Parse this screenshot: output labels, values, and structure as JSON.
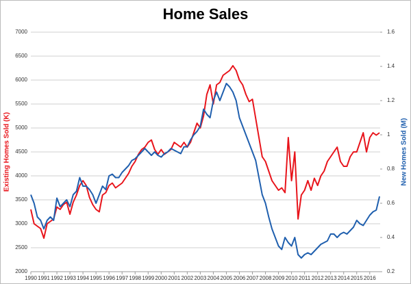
{
  "chart_data": {
    "type": "line",
    "title": "Home Sales",
    "y_label": "Existing Homes Sold (K)",
    "y2_label": "New Homes Sold (M)",
    "x": [
      1990,
      1990.25,
      1990.5,
      1990.75,
      1991,
      1991.25,
      1991.5,
      1991.75,
      1992,
      1992.25,
      1992.5,
      1992.75,
      1993,
      1993.25,
      1993.5,
      1993.75,
      1994,
      1994.25,
      1994.5,
      1994.75,
      1995,
      1995.25,
      1995.5,
      1995.75,
      1996,
      1996.25,
      1996.5,
      1996.75,
      1997,
      1997.25,
      1997.5,
      1997.75,
      1998,
      1998.25,
      1998.5,
      1998.75,
      1999,
      1999.25,
      1999.5,
      1999.75,
      2000,
      2000.25,
      2000.5,
      2000.75,
      2001,
      2001.25,
      2001.5,
      2001.75,
      2002,
      2002.25,
      2002.5,
      2002.75,
      2003,
      2003.25,
      2003.5,
      2003.75,
      2004,
      2004.25,
      2004.5,
      2004.75,
      2005,
      2005.25,
      2005.5,
      2005.75,
      2006,
      2006.25,
      2006.5,
      2006.75,
      2007,
      2007.25,
      2007.5,
      2007.75,
      2008,
      2008.25,
      2008.5,
      2008.75,
      2009,
      2009.25,
      2009.5,
      2009.75,
      2010,
      2010.25,
      2010.5,
      2010.75,
      2011,
      2011.25,
      2011.5,
      2011.75,
      2012,
      2012.25,
      2012.5,
      2012.75,
      2013,
      2013.25,
      2013.5,
      2013.75,
      2014,
      2014.25,
      2014.5,
      2014.75,
      2015,
      2015.25,
      2015.5,
      2015.75,
      2016,
      2016.25,
      2016.5,
      2016.75
    ],
    "series": [
      {
        "name": "Existing Homes Sold (K)",
        "color": "#e8141b",
        "axis": "y",
        "values": [
          3300,
          3000,
          2950,
          2900,
          2700,
          3000,
          3050,
          3100,
          3350,
          3300,
          3400,
          3450,
          3200,
          3450,
          3600,
          3800,
          3900,
          3800,
          3550,
          3400,
          3300,
          3250,
          3600,
          3650,
          3800,
          3850,
          3750,
          3800,
          3850,
          3950,
          4050,
          4200,
          4300,
          4450,
          4550,
          4600,
          4700,
          4750,
          4550,
          4450,
          4550,
          4450,
          4500,
          4550,
          4700,
          4650,
          4600,
          4700,
          4600,
          4700,
          4900,
          5100,
          5000,
          5250,
          5700,
          5900,
          5500,
          5900,
          5950,
          6100,
          6150,
          6200,
          6300,
          6200,
          6000,
          5900,
          5700,
          5550,
          5600,
          5200,
          4800,
          4400,
          4300,
          4100,
          3900,
          3800,
          3700,
          3750,
          3650,
          4800,
          3900,
          4500,
          3100,
          3600,
          3700,
          3900,
          3700,
          3950,
          3800,
          4000,
          4100,
          4300,
          4400,
          4500,
          4600,
          4300,
          4200,
          4200,
          4400,
          4500,
          4500,
          4700,
          4900,
          4500,
          4800,
          4900,
          4850,
          4900
        ]
      },
      {
        "name": "New Homes Sold (M)",
        "color": "#1f5fae",
        "axis": "y2",
        "values": [
          0.65,
          0.6,
          0.52,
          0.5,
          0.45,
          0.5,
          0.52,
          0.5,
          0.63,
          0.58,
          0.6,
          0.62,
          0.58,
          0.65,
          0.67,
          0.75,
          0.7,
          0.7,
          0.68,
          0.65,
          0.6,
          0.65,
          0.7,
          0.68,
          0.76,
          0.77,
          0.75,
          0.75,
          0.78,
          0.8,
          0.82,
          0.85,
          0.86,
          0.88,
          0.9,
          0.92,
          0.9,
          0.88,
          0.9,
          0.88,
          0.87,
          0.89,
          0.9,
          0.92,
          0.91,
          0.9,
          0.89,
          0.93,
          0.93,
          0.97,
          1.0,
          1.02,
          1.05,
          1.15,
          1.12,
          1.1,
          1.2,
          1.25,
          1.2,
          1.25,
          1.3,
          1.28,
          1.25,
          1.2,
          1.1,
          1.05,
          1.0,
          0.95,
          0.9,
          0.85,
          0.75,
          0.65,
          0.6,
          0.52,
          0.45,
          0.4,
          0.35,
          0.33,
          0.4,
          0.37,
          0.35,
          0.4,
          0.3,
          0.28,
          0.3,
          0.31,
          0.3,
          0.32,
          0.34,
          0.36,
          0.37,
          0.38,
          0.42,
          0.42,
          0.4,
          0.42,
          0.43,
          0.42,
          0.44,
          0.46,
          0.5,
          0.48,
          0.47,
          0.5,
          0.53,
          0.55,
          0.56,
          0.64
        ]
      }
    ],
    "xlim": [
      1990,
      2016.8
    ],
    "xticks": [
      1990,
      1991,
      1992,
      1993,
      1994,
      1995,
      1996,
      1997,
      1998,
      1999,
      2000,
      2001,
      2002,
      2003,
      2004,
      2005,
      2006,
      2007,
      2008,
      2009,
      2010,
      2011,
      2012,
      2013,
      2014,
      2015,
      2016
    ],
    "ylim": [
      2000,
      7000
    ],
    "yticks": [
      2000,
      2500,
      3000,
      3500,
      4000,
      4500,
      5000,
      5500,
      6000,
      6500,
      7000
    ],
    "y2lim": [
      0.2,
      1.6
    ],
    "y2ticks": [
      0.2,
      0.4,
      0.6,
      0.8,
      1,
      1.2,
      1.4,
      1.6
    ],
    "grid": true
  }
}
